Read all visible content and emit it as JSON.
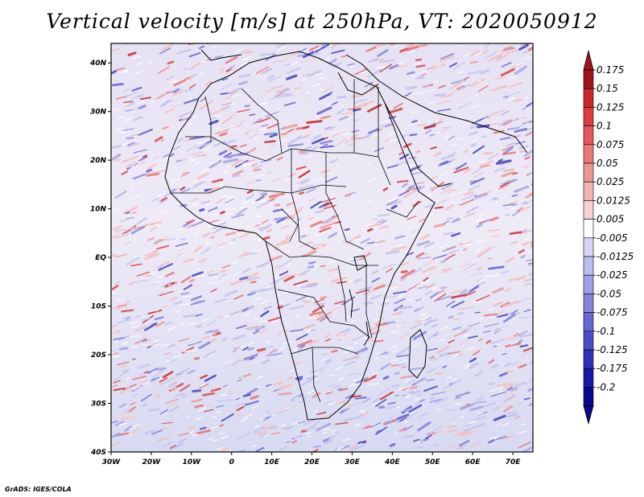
{
  "title": "Vertical velocity [m/s] at 250hPa, VT: 2020050912",
  "credit": "GrADS: IGES/COLA",
  "map": {
    "lon_labels": [
      "30W",
      "20W",
      "10W",
      "0",
      "10E",
      "20E",
      "30E",
      "40E",
      "50E",
      "60E",
      "70E"
    ],
    "lat_labels": [
      "40N",
      "30N",
      "20N",
      "10N",
      "EQ",
      "10S",
      "20S",
      "30S",
      "40S"
    ],
    "lon_range": [
      -30,
      75
    ],
    "lat_range": [
      -40,
      44
    ]
  },
  "colorbar": {
    "labels": [
      "0.175",
      "0.15",
      "0.125",
      "0.1",
      "0.075",
      "0.05",
      "0.025",
      "0.0125",
      "0.005",
      "-0.005",
      "-0.0125",
      "-0.025",
      "-0.05",
      "-0.075",
      "-0.1",
      "-0.125",
      "-0.175",
      "-0.2"
    ],
    "colors": [
      "#a0141e",
      "#c8282d",
      "#dc3c3c",
      "#e45a5a",
      "#ea7878",
      "#ee9696",
      "#f2b4b4",
      "#f6d2d2",
      "#ffffff",
      "#d6d6f4",
      "#bcbcee",
      "#a0a0e6",
      "#8484dc",
      "#6868d2",
      "#4c4cc6",
      "#3030b8",
      "#1818a6",
      "#08088c"
    ],
    "top_arrow_color": "#a0141e",
    "bottom_arrow_color": "#08088c"
  }
}
